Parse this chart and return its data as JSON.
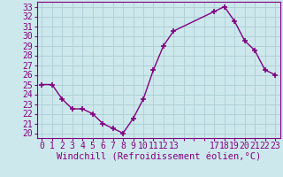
{
  "x": [
    0,
    1,
    2,
    3,
    4,
    5,
    6,
    7,
    8,
    9,
    10,
    11,
    12,
    13,
    17,
    18,
    19,
    20,
    21,
    22,
    23
  ],
  "y": [
    25,
    25,
    23.5,
    22.5,
    22.5,
    22,
    21,
    20.5,
    20,
    21.5,
    23.5,
    26.5,
    29,
    30.5,
    32.5,
    33,
    31.5,
    29.5,
    28.5,
    26.5,
    26
  ],
  "line_color": "#800080",
  "marker": "+",
  "marker_size": 4,
  "marker_lw": 1.2,
  "bg_color": "#cde8ec",
  "grid_color": "#b0d0d8",
  "xlabel": "Windchill (Refroidissement éolien,°C)",
  "xlabel_fontsize": 7.5,
  "ylabel_ticks": [
    20,
    21,
    22,
    23,
    24,
    25,
    26,
    27,
    28,
    29,
    30,
    31,
    32,
    33
  ],
  "ylim": [
    19.5,
    33.5
  ],
  "xlim": [
    -0.5,
    23.5
  ],
  "tick_fontsize": 7,
  "line_width": 1.0
}
